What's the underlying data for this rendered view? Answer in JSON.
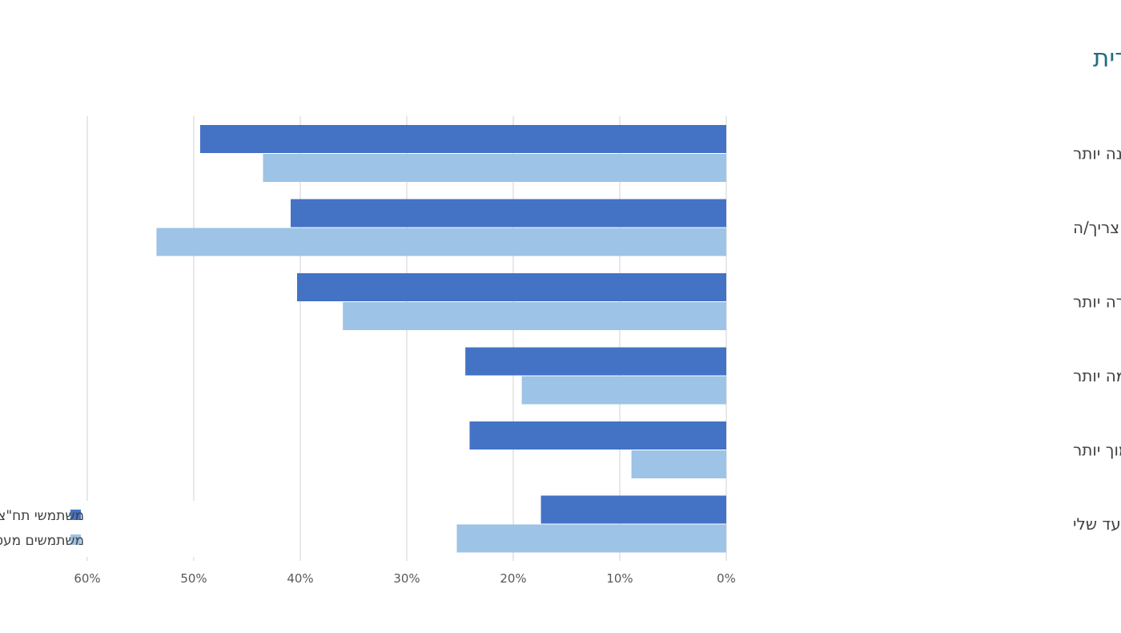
{
  "chart_data": {
    "type": "bar",
    "orientation": "horizontal",
    "title": "מה יגרום לך להגברת השימוש בתחבורה ציבורית",
    "categories": [
      "תחבורה הציבורית אמינה יותר",
      "תחבורה ציבורית במסלולים שאני צריך/ה",
      "תחבורה הציבורית מהירה יותר",
      "חווית נסיעה נעימה יותר",
      "מחיר נסיעה נמוך יותר",
      "תחנה קרובה יותר לנקודת המוצא/ליעד שלי"
    ],
    "series": [
      {
        "name": "משתמשי תח\"צ תדירים",
        "color": "#4472c4",
        "values": [
          49.4,
          40.9,
          40.3,
          24.5,
          24.1,
          17.4
        ]
      },
      {
        "name": "משתמשים מעט או בכלל לא",
        "color": "#9dc3e6",
        "values": [
          43.5,
          53.5,
          36.0,
          19.2,
          8.9,
          25.3
        ]
      }
    ],
    "xlim": [
      0,
      60
    ],
    "x_reversed": true,
    "xticks": [
      "0%",
      "10%",
      "20%",
      "30%",
      "40%",
      "50%",
      "60%"
    ],
    "grid": true,
    "legend_position": "bottom-left",
    "title_color": "#1f6f80"
  }
}
